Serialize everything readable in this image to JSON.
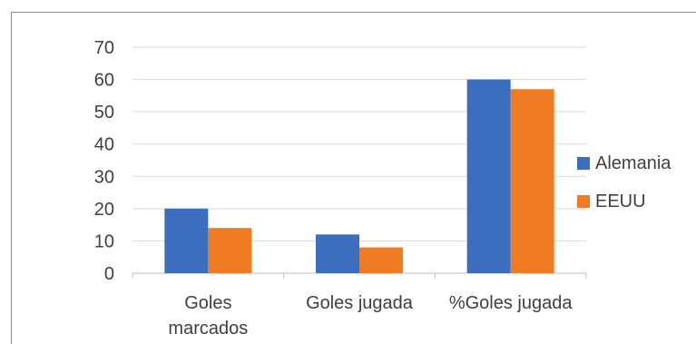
{
  "chart_data": {
    "type": "bar",
    "categories": [
      [
        "Goles",
        "marcados"
      ],
      [
        "Goles jugada"
      ],
      [
        "%Goles jugada"
      ]
    ],
    "series": [
      {
        "name": "Alemania",
        "color": "#3c6ebf",
        "values": [
          20,
          12,
          60
        ]
      },
      {
        "name": "EEUU",
        "color": "#ef7b22",
        "values": [
          14,
          8,
          57
        ]
      }
    ],
    "yticks": [
      "0",
      "10",
      "20",
      "30",
      "40",
      "50",
      "60",
      "70"
    ],
    "ylim": [
      0,
      70
    ],
    "grid": true,
    "legend": "right"
  }
}
